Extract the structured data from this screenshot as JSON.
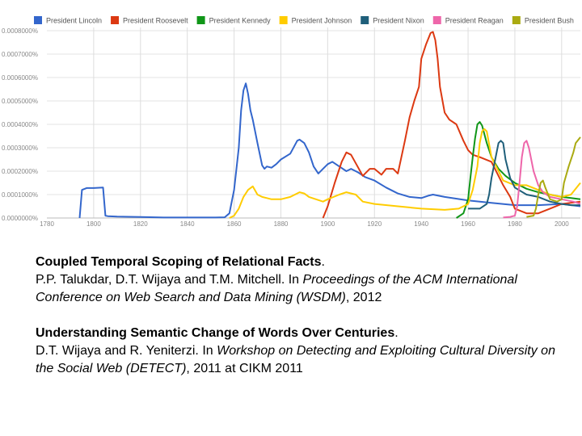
{
  "chart_data": {
    "type": "line",
    "x_ticks": [
      "1780",
      "1800",
      "1820",
      "1840",
      "1860",
      "1880",
      "1900",
      "1920",
      "1940",
      "1960",
      "1980",
      "2000"
    ],
    "y_ticks": [
      "0.0000000%",
      "0.0001000%",
      "0.0002000%",
      "0.0003000%",
      "0.0004000%",
      "0.0005000%",
      "0.0006000%",
      "0.0007000%",
      "0.0008000%"
    ],
    "xlim": [
      1780,
      2008
    ],
    "ylim": [
      0,
      8e-05
    ],
    "grid": true,
    "legend_position": "top",
    "series": [
      {
        "name": "President Lincoln",
        "color": "#3366cc",
        "x": [
          1794,
          1795,
          1797,
          1800,
          1804,
          1805,
          1806,
          1810,
          1820,
          1830,
          1840,
          1852,
          1856,
          1858,
          1860,
          1861,
          1862,
          1863,
          1864,
          1865,
          1866,
          1867,
          1868,
          1870,
          1872,
          1873,
          1874,
          1876,
          1878,
          1880,
          1884,
          1887,
          1888,
          1890,
          1892,
          1894,
          1896,
          1898,
          1900,
          1902,
          1905,
          1908,
          1910,
          1913,
          1916,
          1920,
          1925,
          1928,
          1930,
          1935,
          1940,
          1943,
          1945,
          1950,
          1960,
          1970,
          1980,
          1990,
          2000,
          2008
        ],
        "y": [
          0,
          1.2e-05,
          1.28e-05,
          1.28e-05,
          1.3e-05,
          1e-06,
          8e-07,
          6e-07,
          4e-07,
          2e-07,
          2e-07,
          2e-07,
          3e-07,
          2e-06,
          1.2e-05,
          2.1e-05,
          3e-05,
          4.6e-05,
          5.45e-05,
          5.75e-05,
          5.3e-05,
          4.6e-05,
          4.2e-05,
          3.2e-05,
          2.25e-05,
          2.1e-05,
          2.2e-05,
          2.15e-05,
          2.3e-05,
          2.5e-05,
          2.75e-05,
          3.3e-05,
          3.35e-05,
          3.2e-05,
          2.8e-05,
          2.2e-05,
          1.9e-05,
          2.1e-05,
          2.3e-05,
          2.4e-05,
          2.2e-05,
          2e-05,
          2.1e-05,
          1.95e-05,
          1.75e-05,
          1.6e-05,
          1.3e-05,
          1.15e-05,
          1.05e-05,
          9e-06,
          8.5e-06,
          9.5e-06,
          1e-05,
          9e-06,
          7.5e-06,
          6.5e-06,
          5.5e-06,
          5.5e-06,
          6e-06,
          5e-06
        ]
      },
      {
        "name": "President Roosevelt",
        "color": "#dc3912",
        "x": [
          1898,
          1900,
          1903,
          1906,
          1908,
          1910,
          1915,
          1918,
          1920,
          1923,
          1925,
          1928,
          1930,
          1933,
          1935,
          1937,
          1939,
          1940,
          1942,
          1944,
          1945,
          1946,
          1947,
          1948,
          1950,
          1952,
          1955,
          1958,
          1960,
          1962,
          1965,
          1970,
          1975,
          1978,
          1980,
          1985,
          1990,
          1995,
          2000,
          2008
        ],
        "y": [
          0,
          5e-06,
          1.5e-05,
          2.4e-05,
          2.8e-05,
          2.7e-05,
          1.8e-05,
          2.1e-05,
          2.1e-05,
          1.85e-05,
          2.1e-05,
          2.1e-05,
          1.9e-05,
          3.3e-05,
          4.3e-05,
          5e-05,
          5.6e-05,
          6.8e-05,
          7.4e-05,
          7.9e-05,
          7.95e-05,
          7.6e-05,
          6.8e-05,
          5.6e-05,
          4.5e-05,
          4.2e-05,
          4e-05,
          3.3e-05,
          2.9e-05,
          2.7e-05,
          2.6e-05,
          2.4e-05,
          1.4e-05,
          9e-06,
          4e-06,
          2e-06,
          2e-06,
          4e-06,
          6e-06,
          7e-06
        ]
      },
      {
        "name": "President Kennedy",
        "color": "#109618",
        "x": [
          1955,
          1958,
          1960,
          1961,
          1962,
          1963,
          1964,
          1965,
          1966,
          1968,
          1970,
          1973,
          1976,
          1980,
          1985,
          1990,
          1995,
          2000,
          2004,
          2008
        ],
        "y": [
          0,
          2e-06,
          8e-06,
          1.7e-05,
          2.6e-05,
          3.4e-05,
          4e-05,
          4.1e-05,
          3.95e-05,
          3.2e-05,
          2.6e-05,
          2.1e-05,
          1.8e-05,
          1.5e-05,
          1.25e-05,
          1.1e-05,
          1e-05,
          9e-06,
          8.5e-06,
          8e-06
        ]
      },
      {
        "name": "President Johnson",
        "color": "#ffcc00",
        "x": [
          1858,
          1860,
          1862,
          1864,
          1866,
          1868,
          1870,
          1872,
          1874,
          1876,
          1878,
          1880,
          1884,
          1888,
          1890,
          1892,
          1895,
          1898,
          1900,
          1905,
          1908,
          1912,
          1915,
          1920,
          1930,
          1940,
          1950,
          1956,
          1960,
          1962,
          1964,
          1965,
          1966,
          1967,
          1968,
          1970,
          1975,
          1980,
          1985,
          1990,
          1995,
          2000,
          2004,
          2008
        ],
        "y": [
          0,
          1e-06,
          4e-06,
          9e-06,
          1.2e-05,
          1.35e-05,
          1e-05,
          9e-06,
          8.5e-06,
          8e-06,
          8e-06,
          8e-06,
          9e-06,
          1.1e-05,
          1.05e-05,
          9e-06,
          8e-06,
          7e-06,
          8e-06,
          1e-05,
          1.1e-05,
          1e-05,
          7e-06,
          6e-06,
          5e-06,
          4e-06,
          3.5e-06,
          4e-06,
          6e-06,
          1.2e-05,
          2.2e-05,
          3.2e-05,
          3.7e-05,
          3.8e-05,
          3.7e-05,
          2.6e-05,
          1.6e-05,
          1.4e-05,
          1.4e-05,
          1.2e-05,
          1e-05,
          9e-06,
          1e-05,
          1.5e-05
        ]
      },
      {
        "name": "President Nixon",
        "color": "#1f5f7a",
        "x": [
          1960,
          1962,
          1965,
          1968,
          1969,
          1970,
          1972,
          1973,
          1974,
          1975,
          1976,
          1978,
          1980,
          1985,
          1990,
          1995,
          2000,
          2004,
          2008
        ],
        "y": [
          4e-06,
          4e-06,
          4e-06,
          6e-06,
          1e-05,
          1.7e-05,
          2.7e-05,
          3.2e-05,
          3.3e-05,
          3.2e-05,
          2.5e-05,
          1.7e-05,
          1.3e-05,
          1e-05,
          9e-06,
          7e-06,
          6e-06,
          5.5e-06,
          5.5e-06
        ]
      },
      {
        "name": "President Reagan",
        "color": "#ee66aa",
        "x": [
          1975,
          1978,
          1980,
          1981,
          1982,
          1983,
          1984,
          1985,
          1986,
          1988,
          1990,
          1992,
          1995,
          2000,
          2005,
          2008
        ],
        "y": [
          2e-07,
          5e-07,
          1e-06,
          5e-06,
          1.5e-05,
          2.6e-05,
          3.2e-05,
          3.3e-05,
          3e-05,
          2e-05,
          1.4e-05,
          1.1e-05,
          9e-06,
          8e-06,
          7e-06,
          6e-06
        ]
      },
      {
        "name": "President Bush",
        "color": "#aaaa11",
        "x": [
          1985,
          1988,
          1989,
          1990,
          1991,
          1992,
          1993,
          1995,
          1998,
          2000,
          2001,
          2003,
          2005,
          2006,
          2008
        ],
        "y": [
          5e-07,
          1e-06,
          4e-06,
          1e-05,
          1.5e-05,
          1.6e-05,
          1.3e-05,
          8e-06,
          7e-06,
          8e-06,
          1.5e-05,
          2.2e-05,
          2.8e-05,
          3.2e-05,
          3.45e-05
        ]
      }
    ]
  },
  "references": [
    {
      "title": "Coupled Temporal Scoping of Relational Facts",
      "title_end": ".",
      "authors": "P.P. Talukdar, D.T. Wijaya and T.M. Mitchell. In ",
      "venue": "Proceedings of the ACM International Conference on Web Search and Data Mining (WSDM)",
      "tail": ", 2012"
    },
    {
      "title": "Understanding Semantic Change of Words Over Centuries",
      "title_end": ".",
      "authors": "D.T. Wijaya and R. Yeniterzi. In ",
      "venue": "Workshop on Detecting and Exploiting Cultural Diversity on the Social Web (DETECT)",
      "tail": ", 2011 at CIKM 2011"
    }
  ]
}
